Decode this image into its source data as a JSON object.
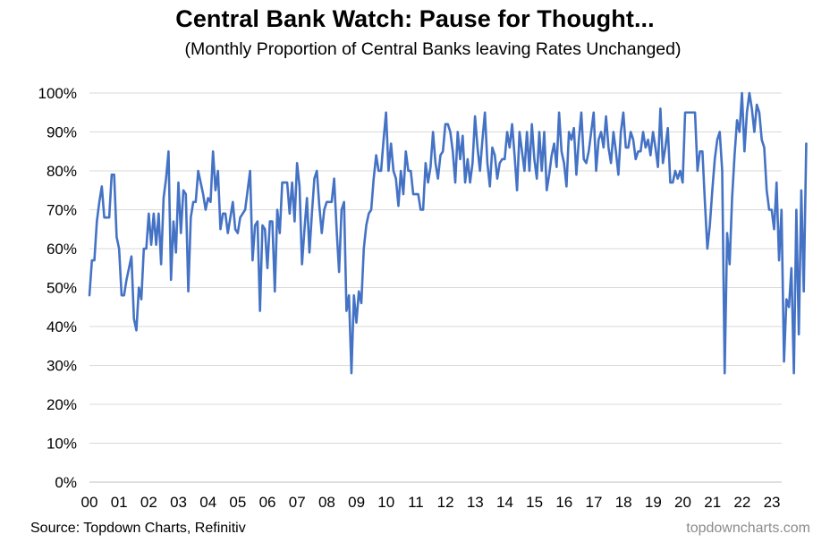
{
  "chart_data": {
    "type": "line",
    "title": "Central Bank Watch: Pause for Thought...",
    "subtitle": "(Monthly Proportion of Central Banks leaving Rates Unchanged)",
    "xlabel": "",
    "ylabel": "",
    "ylim": [
      0,
      100
    ],
    "xlim": [
      2000.0,
      2023.33
    ],
    "y_ticks": [
      "0%",
      "10%",
      "20%",
      "30%",
      "40%",
      "50%",
      "60%",
      "70%",
      "80%",
      "90%",
      "100%"
    ],
    "x_ticks": [
      "00",
      "01",
      "02",
      "03",
      "04",
      "05",
      "06",
      "07",
      "08",
      "09",
      "10",
      "11",
      "12",
      "13",
      "14",
      "15",
      "16",
      "17",
      "18",
      "19",
      "20",
      "21",
      "22",
      "23"
    ],
    "grid": true,
    "legend": "none",
    "colors": {
      "line": "#4472C4",
      "grid": "#d9d9d9"
    },
    "series": [
      {
        "x_start": 2000.0,
        "x_step": 0.0833,
        "values": [
          48,
          57,
          57,
          67,
          72,
          76,
          68,
          68,
          68,
          79,
          79,
          63,
          60,
          48,
          48,
          52,
          55,
          58,
          42,
          39,
          50,
          47,
          60,
          60,
          69,
          61,
          69,
          61,
          69,
          56,
          73,
          78,
          85,
          52,
          67,
          59,
          77,
          64,
          75,
          74,
          49,
          68,
          72,
          72,
          80,
          77,
          74,
          70,
          73,
          72,
          85,
          75,
          80,
          65,
          69,
          69,
          64,
          68,
          72,
          65,
          64,
          68,
          69,
          70,
          75,
          80,
          57,
          66,
          67,
          44,
          66,
          65,
          55,
          67,
          67,
          49,
          70,
          64,
          77,
          77,
          77,
          69,
          77,
          67,
          82,
          76,
          56,
          65,
          73,
          59,
          69,
          78,
          80,
          71,
          64,
          70,
          72,
          72,
          72,
          78,
          65,
          54,
          70,
          72,
          44,
          48,
          28,
          48,
          41,
          49,
          46,
          60,
          66,
          69,
          70,
          78,
          84,
          80,
          80,
          88,
          95,
          80,
          87,
          80,
          78,
          71,
          80,
          74,
          85,
          80,
          80,
          74,
          74,
          74,
          70,
          70,
          82,
          77,
          81,
          90,
          82,
          78,
          84,
          85,
          92,
          92,
          90,
          85,
          77,
          90,
          83,
          89,
          77,
          83,
          77,
          82,
          94,
          86,
          80,
          88,
          95,
          82,
          76,
          86,
          84,
          78,
          82,
          83,
          83,
          90,
          86,
          92,
          84,
          75,
          90,
          85,
          80,
          90,
          80,
          92,
          83,
          78,
          90,
          80,
          90,
          75,
          79,
          84,
          87,
          81,
          95,
          85,
          82,
          76,
          90,
          88,
          91,
          79,
          88,
          95,
          83,
          82,
          85,
          90,
          95,
          80,
          88,
          90,
          86,
          94,
          86,
          82,
          90,
          85,
          79,
          90,
          95,
          86,
          86,
          90,
          88,
          83,
          85,
          85,
          90,
          86,
          88,
          84,
          90,
          86,
          81,
          96,
          82,
          86,
          91,
          77,
          77,
          80,
          78,
          80,
          77,
          95,
          95,
          95,
          95,
          95,
          80,
          85,
          85,
          72,
          60,
          66,
          75,
          83,
          88,
          90,
          80,
          28,
          64,
          56,
          73,
          84,
          93,
          90,
          100,
          85,
          95,
          100,
          96,
          90,
          97,
          95,
          88,
          86,
          75,
          70,
          70,
          65,
          77,
          57,
          70,
          31,
          47,
          45,
          55,
          28,
          70,
          38,
          75,
          49,
          87
        ]
      }
    ],
    "source": "Source: Topdown Charts, Refinitiv",
    "brand": "topdowncharts.com"
  }
}
